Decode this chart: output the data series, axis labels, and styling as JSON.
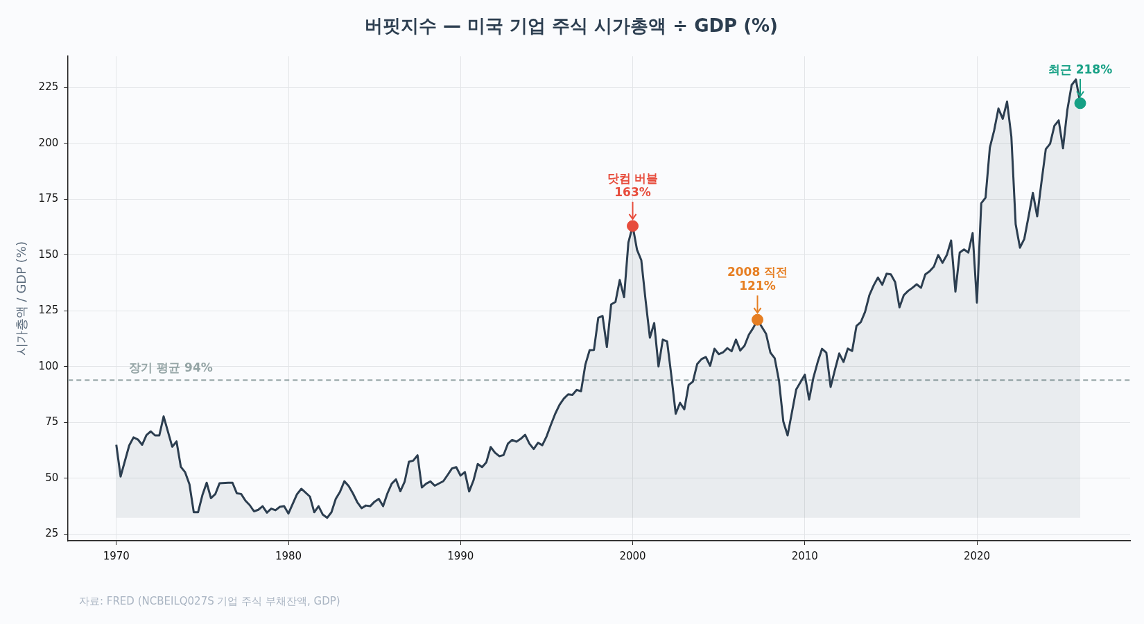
{
  "chart_data": {
    "type": "area",
    "title": "버핏지수 — 미국 기업 주식 시가총액 ÷ GDP (%)",
    "ylabel": "시가총액 / GDP (%)",
    "xlim": [
      1967.2,
      2028.9
    ],
    "xticks": [
      1970,
      1980,
      1990,
      2000,
      2010,
      2020
    ],
    "ylim": [
      22,
      239
    ],
    "yticks": [
      25,
      50,
      75,
      100,
      125,
      150,
      175,
      200,
      225
    ],
    "grid": true,
    "legend": false,
    "marker": "none",
    "series": [
      {
        "color": "#2c3e50",
        "x": [
          1970,
          1970.25,
          1970.75,
          1971,
          1971.25,
          1971.5,
          1971.75,
          1972,
          1972.25,
          1972.5,
          1972.75,
          1973.25,
          1973.5,
          1973.75,
          1974,
          1974.25,
          1974.5,
          1974.75,
          1975,
          1975.25,
          1975.5,
          1975.75,
          1976,
          1976.5,
          1976.75,
          1977,
          1977.25,
          1977.5,
          1977.75,
          1978,
          1978.25,
          1978.5,
          1978.75,
          1979,
          1979.25,
          1979.5,
          1979.75,
          1980,
          1980.25,
          1980.5,
          1980.75,
          1981.25,
          1981.5,
          1981.75,
          1982,
          1982.25,
          1982.5,
          1982.75,
          1983,
          1983.25,
          1983.5,
          1983.75,
          1984,
          1984.25,
          1984.5,
          1984.75,
          1985,
          1985.25,
          1985.5,
          1985.75,
          1986,
          1986.25,
          1986.5,
          1986.75,
          1987,
          1987.25,
          1987.5,
          1987.75,
          1988,
          1988.25,
          1988.5,
          1989,
          1989.25,
          1989.5,
          1989.75,
          1990,
          1990.25,
          1990.5,
          1990.75,
          1991,
          1991.25,
          1991.5,
          1991.75,
          1992,
          1992.25,
          1992.5,
          1992.75,
          1993,
          1993.25,
          1993.5,
          1993.75,
          1994,
          1994.25,
          1994.5,
          1994.75,
          1995,
          1995.25,
          1995.5,
          1995.75,
          1996,
          1996.25,
          1996.5,
          1996.75,
          1997,
          1997.25,
          1997.5,
          1997.75,
          1998,
          1998.25,
          1998.5,
          1998.75,
          1999,
          1999.25,
          1999.5,
          1999.75,
          2000,
          2000.25,
          2000.5,
          2000.75,
          2001,
          2001.25,
          2001.5,
          2001.75,
          2002,
          2002.25,
          2002.5,
          2002.75,
          2003,
          2003.25,
          2003.5,
          2003.75,
          2004,
          2004.25,
          2004.5,
          2004.75,
          2005,
          2005.25,
          2005.5,
          2005.75,
          2006,
          2006.25,
          2006.5,
          2006.75,
          2007,
          2007.25,
          2007.75,
          2008,
          2008.25,
          2008.5,
          2008.75,
          2009,
          2009.5,
          2010,
          2010.25,
          2010.5,
          2010.75,
          2011,
          2011.25,
          2011.5,
          2011.75,
          2012,
          2012.25,
          2012.5,
          2012.75,
          2013,
          2013.25,
          2013.5,
          2013.75,
          2014,
          2014.25,
          2014.5,
          2014.75,
          2015,
          2015.25,
          2015.5,
          2015.75,
          2016,
          2016.25,
          2016.5,
          2016.75,
          2017,
          2017.25,
          2017.5,
          2017.75,
          2018,
          2018.25,
          2018.5,
          2018.75,
          2019,
          2019.25,
          2019.5,
          2019.75,
          2020,
          2020.25,
          2020.5,
          2020.75,
          2021,
          2021.25,
          2021.5,
          2021.75,
          2022,
          2022.25,
          2022.5,
          2022.75,
          2023,
          2023.25,
          2023.5,
          2023.75,
          2024,
          2024.25,
          2024.5,
          2024.75,
          2025,
          2025.25,
          2025.5,
          2025.75,
          2026
        ],
        "values": [
          65,
          50.8,
          64.7,
          68.3,
          67.4,
          65,
          69.3,
          71,
          69.2,
          69.2,
          77.7,
          64.1,
          66.5,
          55.1,
          52.7,
          47.3,
          34.8,
          34.8,
          42.4,
          48,
          41.1,
          42.9,
          47.8,
          48,
          48,
          43.3,
          43,
          40,
          38,
          35.2,
          35.9,
          37.5,
          34.6,
          36.4,
          35.7,
          37.2,
          37.5,
          34.2,
          38.6,
          42.9,
          45.3,
          41.8,
          34.8,
          37.5,
          33.7,
          32.3,
          34.8,
          40.8,
          44,
          48.7,
          46.5,
          43.2,
          39.3,
          36.6,
          37.8,
          37.5,
          39.5,
          40.8,
          37.5,
          43.2,
          47.6,
          49.5,
          44.2,
          48.4,
          57.4,
          57.9,
          60.3,
          45.9,
          47.6,
          48.6,
          46.7,
          48.7,
          51.5,
          54.4,
          55,
          51.2,
          52.8,
          44.1,
          49,
          56.4,
          55,
          57.2,
          64,
          61.5,
          59.9,
          60.4,
          65.5,
          67.2,
          66.4,
          67.7,
          69.5,
          65.5,
          63.1,
          65.9,
          64.8,
          68.8,
          74,
          78.9,
          82.9,
          85.7,
          87.6,
          87.4,
          89.6,
          89,
          100.9,
          107.4,
          107.5,
          121.9,
          122.7,
          108.8,
          127.9,
          129,
          138.8,
          131.1,
          155.6,
          163,
          152.4,
          147.7,
          129.7,
          113,
          119.5,
          100.1,
          112.1,
          111.3,
          95.8,
          78.9,
          83.8,
          80.9,
          91.8,
          93.3,
          101.2,
          103.4,
          104.3,
          100.4,
          108,
          105.6,
          106.4,
          108.3,
          106.9,
          112.1,
          107.2,
          109.4,
          114.3,
          117.3,
          121,
          114.7,
          106.3,
          103.8,
          93.7,
          75.5,
          69.2,
          89.8,
          96.4,
          85.3,
          95.1,
          102.1,
          108,
          106.3,
          90.9,
          98.6,
          105.9,
          102.1,
          108.1,
          107,
          118.2,
          119.9,
          124.5,
          132,
          136.4,
          139.9,
          136.7,
          141.6,
          141.3,
          137.8,
          126.6,
          132,
          133.9,
          135.3,
          136.9,
          135.3,
          141.3,
          142.7,
          144.8,
          150,
          146.5,
          150,
          156.5,
          133.6,
          151.1,
          152.5,
          151.1,
          159.8,
          128.7,
          173.2,
          175.7,
          198.1,
          205.8,
          215.6,
          211,
          218.7,
          203,
          163.8,
          153.3,
          157.2,
          167.3,
          177.8,
          167.3,
          182.7,
          197.4,
          199.8,
          207.9,
          210.3,
          197.8,
          214.9,
          226.1,
          228.6,
          218
        ]
      },
      {
        "type": "scatter",
        "marker": "circle",
        "colors": [
          "#e74c3c",
          "#e67e22",
          "#16a085"
        ],
        "x": [
          2000,
          2007.25,
          2026
        ],
        "values": [
          163,
          121,
          218
        ]
      }
    ],
    "ref_lines": [
      {
        "axis": "y",
        "value": 94,
        "label": "장기 평균 94%",
        "color": "#95a5a6",
        "line_style": "dashed"
      }
    ],
    "annotations": [
      {
        "text": "닷컴 버블\n163%",
        "x": 2000,
        "y": 163
      },
      {
        "text": "2008 직전\n121%",
        "x": 2007.25,
        "y": 121
      },
      {
        "text": "최근 218%",
        "x": 2026,
        "y": 218
      },
      "자료: FRED (NCBEILQ027S 기업 주식 부채잔액, GDP)"
    ]
  }
}
